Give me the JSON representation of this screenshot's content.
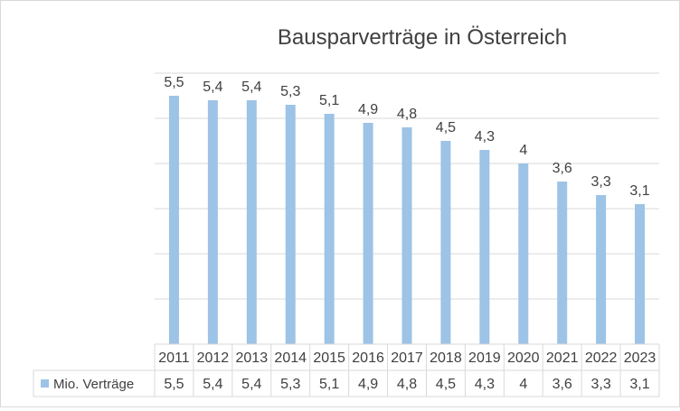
{
  "chart_data": {
    "type": "bar",
    "title": "Bausparverträge in Österreich",
    "categories": [
      "2011",
      "2012",
      "2013",
      "2014",
      "2015",
      "2016",
      "2017",
      "2018",
      "2019",
      "2020",
      "2021",
      "2022",
      "2023"
    ],
    "series": [
      {
        "name": "Mio. Verträge",
        "values": [
          5.5,
          5.4,
          5.4,
          5.3,
          5.1,
          4.9,
          4.8,
          4.5,
          4.3,
          4,
          3.6,
          3.3,
          3.1
        ],
        "labels": [
          "5,5",
          "5,4",
          "5,4",
          "5,3",
          "5,1",
          "4,9",
          "4,8",
          "4,5",
          "4,3",
          "4",
          "3,6",
          "3,3",
          "3,1"
        ],
        "color": "#9dc3e6"
      }
    ],
    "ylim": [
      0,
      6
    ],
    "grid": true,
    "data_table": true,
    "legend": "in data table"
  }
}
